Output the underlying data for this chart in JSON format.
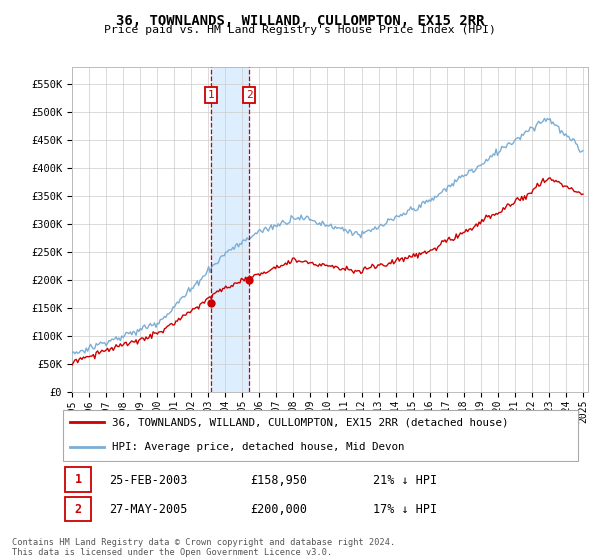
{
  "title": "36, TOWNLANDS, WILLAND, CULLOMPTON, EX15 2RR",
  "subtitle": "Price paid vs. HM Land Registry's House Price Index (HPI)",
  "legend_entry1": "36, TOWNLANDS, WILLAND, CULLOMPTON, EX15 2RR (detached house)",
  "legend_entry2": "HPI: Average price, detached house, Mid Devon",
  "transaction1_date": "25-FEB-2003",
  "transaction1_price": 158950,
  "transaction1_hpi": "21% ↓ HPI",
  "transaction2_date": "27-MAY-2005",
  "transaction2_price": 200000,
  "transaction2_hpi": "17% ↓ HPI",
  "footer": "Contains HM Land Registry data © Crown copyright and database right 2024.\nThis data is licensed under the Open Government Licence v3.0.",
  "hpi_color": "#7aaed6",
  "price_color": "#cc0000",
  "highlight_color": "#ddeeff",
  "marker_box_color": "#cc0000",
  "ylim_min": 0,
  "ylim_max": 580000,
  "yticks": [
    0,
    50000,
    100000,
    150000,
    200000,
    250000,
    300000,
    350000,
    400000,
    450000,
    500000,
    550000
  ],
  "ytick_labels": [
    "£0",
    "£50K",
    "£100K",
    "£150K",
    "£200K",
    "£250K",
    "£300K",
    "£350K",
    "£400K",
    "£450K",
    "£500K",
    "£550K"
  ]
}
